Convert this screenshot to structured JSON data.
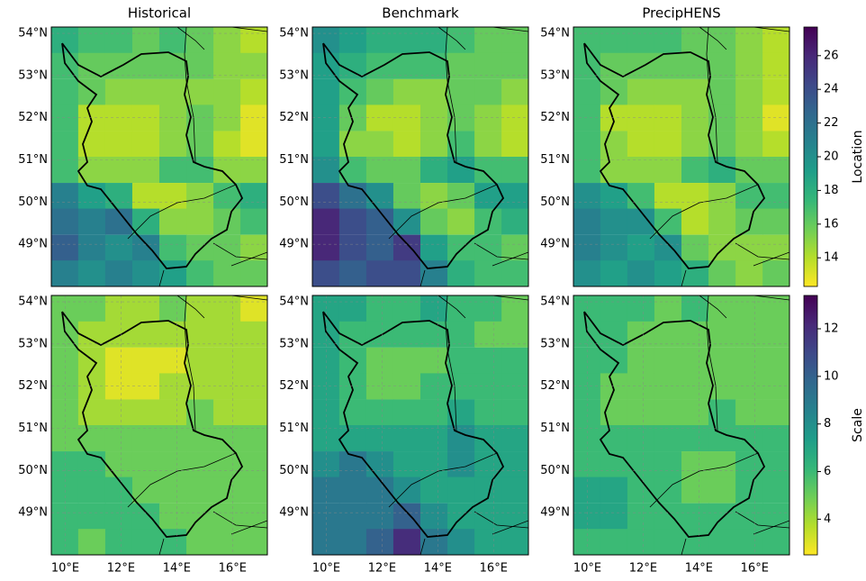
{
  "chart_data": [
    {
      "type": "heatmap",
      "title": "Historical",
      "colormap": "viridis_r",
      "clim": [
        12.3,
        27.7
      ],
      "grid": true,
      "xlim": [
        9.5,
        17.25
      ],
      "ylim": [
        48.0,
        54.15
      ],
      "yticks": [
        {
          "value": 49,
          "label": "49°N"
        },
        {
          "value": 50,
          "label": "50°N"
        },
        {
          "value": 51,
          "label": "51°N"
        },
        {
          "value": 52,
          "label": "52°N"
        },
        {
          "value": 53,
          "label": "53°N"
        },
        {
          "value": 54,
          "label": "54°N"
        }
      ],
      "x": [
        9.98,
        10.95,
        11.92,
        12.89,
        13.86,
        14.83,
        15.8,
        16.77
      ],
      "y": [
        53.84,
        53.23,
        52.61,
        52.0,
        51.38,
        50.77,
        50.15,
        49.54,
        48.92,
        48.31
      ],
      "z": [
        [
          18,
          17,
          17,
          16,
          17,
          16,
          15,
          14
        ],
        [
          17,
          16,
          16,
          16,
          16,
          16,
          15,
          15
        ],
        [
          17,
          16,
          15,
          15,
          15,
          15,
          15,
          14
        ],
        [
          17,
          14,
          14,
          14,
          15,
          16,
          15,
          13
        ],
        [
          17,
          14,
          14,
          14,
          15,
          16,
          14,
          13
        ],
        [
          17,
          15,
          15,
          15,
          17,
          17,
          15,
          15
        ],
        [
          21,
          19,
          18,
          14,
          14,
          15,
          17,
          18
        ],
        [
          22,
          21,
          22,
          18,
          15,
          15,
          16,
          17
        ],
        [
          23,
          21,
          20,
          21,
          17,
          16,
          16,
          15
        ],
        [
          21,
          20,
          21,
          20,
          19,
          17,
          16,
          16
        ]
      ]
    },
    {
      "type": "heatmap",
      "title": "Benchmark",
      "colormap": "viridis_r",
      "clim": [
        12.3,
        27.7
      ],
      "grid": true,
      "xlim": [
        9.5,
        17.25
      ],
      "ylim": [
        48.0,
        54.15
      ],
      "yticks": [
        {
          "value": 49,
          "label": "49°N"
        },
        {
          "value": 50,
          "label": "50°N"
        },
        {
          "value": 51,
          "label": "51°N"
        },
        {
          "value": 52,
          "label": "52°N"
        },
        {
          "value": 53,
          "label": "53°N"
        },
        {
          "value": 54,
          "label": "54°N"
        }
      ],
      "x": [
        9.98,
        10.95,
        11.92,
        12.89,
        13.86,
        14.83,
        15.8,
        16.77
      ],
      "y": [
        53.84,
        53.23,
        52.61,
        52.0,
        51.38,
        50.77,
        50.15,
        49.54,
        48.92,
        48.31
      ],
      "z": [
        [
          20,
          19,
          18,
          18,
          18,
          17,
          16,
          16
        ],
        [
          19,
          18,
          17,
          17,
          17,
          16,
          16,
          16
        ],
        [
          19,
          17,
          16,
          15,
          15,
          16,
          16,
          15
        ],
        [
          19,
          16,
          14,
          14,
          15,
          16,
          15,
          14
        ],
        [
          19,
          15,
          15,
          14,
          15,
          17,
          15,
          14
        ],
        [
          20,
          17,
          16,
          16,
          18,
          19,
          17,
          17
        ],
        [
          24,
          22,
          20,
          16,
          15,
          16,
          19,
          19
        ],
        [
          26,
          24,
          23,
          20,
          16,
          15,
          17,
          18
        ],
        [
          26,
          24,
          23,
          25,
          19,
          17,
          17,
          16
        ],
        [
          24,
          23,
          24,
          24,
          21,
          18,
          17,
          17
        ]
      ]
    },
    {
      "type": "heatmap",
      "title": "PrecipHENS",
      "colormap": "viridis_r",
      "clim": [
        12.3,
        27.7
      ],
      "grid": true,
      "xlim": [
        9.5,
        17.25
      ],
      "ylim": [
        48.0,
        54.15
      ],
      "yticks": [
        {
          "value": 49,
          "label": "49°N"
        },
        {
          "value": 50,
          "label": "50°N"
        },
        {
          "value": 51,
          "label": "51°N"
        },
        {
          "value": 52,
          "label": "52°N"
        },
        {
          "value": 53,
          "label": "53°N"
        },
        {
          "value": 54,
          "label": "54°N"
        }
      ],
      "x": [
        9.98,
        10.95,
        11.92,
        12.89,
        13.86,
        14.83,
        15.8,
        16.77
      ],
      "y": [
        53.84,
        53.23,
        52.61,
        52.0,
        51.38,
        50.77,
        50.15,
        49.54,
        48.92,
        48.31
      ],
      "z": [
        [
          17,
          17,
          17,
          17,
          16,
          16,
          15,
          14
        ],
        [
          17,
          16,
          16,
          16,
          16,
          16,
          15,
          14
        ],
        [
          17,
          16,
          15,
          15,
          15,
          16,
          15,
          14
        ],
        [
          17,
          14,
          14,
          14,
          15,
          16,
          15,
          13
        ],
        [
          17,
          15,
          14,
          14,
          15,
          16,
          15,
          14
        ],
        [
          17,
          15,
          15,
          15,
          17,
          18,
          16,
          16
        ],
        [
          20,
          19,
          17,
          14,
          14,
          15,
          17,
          17
        ],
        [
          21,
          20,
          20,
          17,
          14,
          15,
          16,
          16
        ],
        [
          21,
          20,
          19,
          20,
          16,
          15,
          15,
          15
        ],
        [
          20,
          19,
          20,
          19,
          18,
          16,
          15,
          16
        ]
      ],
      "colorbar": {
        "label": "Location",
        "lim": [
          12.3,
          27.7
        ],
        "ticks": [
          14,
          16,
          18,
          20,
          22,
          24,
          26
        ]
      }
    },
    {
      "type": "heatmap",
      "colormap": "viridis_r",
      "clim": [
        2.5,
        13.4
      ],
      "grid": true,
      "xlim": [
        9.5,
        17.25
      ],
      "ylim": [
        48.0,
        54.15
      ],
      "xticks": [
        {
          "value": 10,
          "label": "10°E"
        },
        {
          "value": 12,
          "label": "12°E"
        },
        {
          "value": 14,
          "label": "14°E"
        },
        {
          "value": 16,
          "label": "16°E"
        }
      ],
      "yticks": [
        {
          "value": 49,
          "label": "49°N"
        },
        {
          "value": 50,
          "label": "50°N"
        },
        {
          "value": 51,
          "label": "51°N"
        },
        {
          "value": 52,
          "label": "52°N"
        },
        {
          "value": 53,
          "label": "53°N"
        },
        {
          "value": 54,
          "label": "54°N"
        }
      ],
      "x": [
        9.98,
        10.95,
        11.92,
        12.89,
        13.86,
        14.83,
        15.8,
        16.77
      ],
      "y": [
        53.84,
        53.23,
        52.61,
        52.0,
        51.38,
        50.77,
        50.15,
        49.54,
        48.92,
        48.31
      ],
      "z": [
        [
          5,
          5,
          4,
          4,
          5,
          4,
          4,
          3
        ],
        [
          5,
          4,
          4,
          4,
          4,
          4,
          4,
          4
        ],
        [
          5,
          4,
          3,
          3,
          3,
          4,
          4,
          4
        ],
        [
          5,
          4,
          3,
          3,
          4,
          4,
          4,
          4
        ],
        [
          5,
          4,
          4,
          4,
          4,
          5,
          4,
          4
        ],
        [
          5,
          5,
          5,
          5,
          5,
          5,
          5,
          5
        ],
        [
          6,
          6,
          5,
          5,
          5,
          5,
          5,
          5
        ],
        [
          6,
          6,
          6,
          5,
          5,
          5,
          5,
          5
        ],
        [
          6,
          6,
          6,
          6,
          5,
          5,
          5,
          5
        ],
        [
          6,
          5,
          6,
          6,
          6,
          5,
          5,
          5
        ]
      ]
    },
    {
      "type": "heatmap",
      "colormap": "viridis_r",
      "clim": [
        2.5,
        13.4
      ],
      "grid": true,
      "xlim": [
        9.5,
        17.25
      ],
      "ylim": [
        48.0,
        54.15
      ],
      "xticks": [
        {
          "value": 10,
          "label": "10°E"
        },
        {
          "value": 12,
          "label": "12°E"
        },
        {
          "value": 14,
          "label": "14°E"
        },
        {
          "value": 16,
          "label": "16°E"
        }
      ],
      "yticks": [
        {
          "value": 49,
          "label": "49°N"
        },
        {
          "value": 50,
          "label": "50°N"
        },
        {
          "value": 51,
          "label": "51°N"
        },
        {
          "value": 52,
          "label": "52°N"
        },
        {
          "value": 53,
          "label": "53°N"
        },
        {
          "value": 54,
          "label": "54°N"
        }
      ],
      "x": [
        9.98,
        10.95,
        11.92,
        12.89,
        13.86,
        14.83,
        15.8,
        16.77
      ],
      "y": [
        53.84,
        53.23,
        52.61,
        52.0,
        51.38,
        50.77,
        50.15,
        49.54,
        48.92,
        48.31
      ],
      "z": [
        [
          7,
          7,
          6,
          6,
          7,
          6,
          6,
          5
        ],
        [
          7,
          6,
          6,
          6,
          6,
          6,
          5,
          5
        ],
        [
          7,
          6,
          5,
          5,
          5,
          6,
          6,
          6
        ],
        [
          7,
          6,
          5,
          5,
          6,
          6,
          6,
          6
        ],
        [
          7,
          6,
          6,
          6,
          6,
          7,
          6,
          6
        ],
        [
          7,
          7,
          7,
          7,
          7,
          8,
          7,
          7
        ],
        [
          8,
          9,
          8,
          7,
          7,
          8,
          7,
          7
        ],
        [
          9,
          9,
          9,
          8,
          7,
          7,
          7,
          7
        ],
        [
          9,
          9,
          9,
          10,
          8,
          7,
          7,
          7
        ],
        [
          9,
          9,
          10,
          12,
          9,
          8,
          7,
          7
        ]
      ]
    },
    {
      "type": "heatmap",
      "colormap": "viridis_r",
      "clim": [
        2.5,
        13.4
      ],
      "grid": true,
      "xlim": [
        9.5,
        17.25
      ],
      "ylim": [
        48.0,
        54.15
      ],
      "xticks": [
        {
          "value": 10,
          "label": "10°E"
        },
        {
          "value": 12,
          "label": "12°E"
        },
        {
          "value": 14,
          "label": "14°E"
        },
        {
          "value": 16,
          "label": "16°E"
        }
      ],
      "yticks": [
        {
          "value": 49,
          "label": "49°N"
        },
        {
          "value": 50,
          "label": "50°N"
        },
        {
          "value": 51,
          "label": "51°N"
        },
        {
          "value": 52,
          "label": "52°N"
        },
        {
          "value": 53,
          "label": "53°N"
        },
        {
          "value": 54,
          "label": "54°N"
        }
      ],
      "x": [
        9.98,
        10.95,
        11.92,
        12.89,
        13.86,
        14.83,
        15.8,
        16.77
      ],
      "y": [
        53.84,
        53.23,
        52.61,
        52.0,
        51.38,
        50.77,
        50.15,
        49.54,
        48.92,
        48.31
      ],
      "z": [
        [
          6,
          6,
          6,
          5,
          6,
          5,
          5,
          5
        ],
        [
          6,
          6,
          5,
          5,
          5,
          5,
          5,
          5
        ],
        [
          6,
          6,
          5,
          5,
          5,
          5,
          5,
          5
        ],
        [
          6,
          5,
          5,
          5,
          5,
          5,
          5,
          5
        ],
        [
          6,
          5,
          5,
          5,
          5,
          6,
          5,
          5
        ],
        [
          6,
          6,
          6,
          6,
          6,
          6,
          6,
          6
        ],
        [
          6,
          6,
          6,
          6,
          5,
          5,
          6,
          6
        ],
        [
          7,
          7,
          6,
          6,
          5,
          5,
          6,
          6
        ],
        [
          7,
          7,
          6,
          6,
          6,
          6,
          6,
          6
        ],
        [
          6,
          6,
          6,
          6,
          6,
          6,
          6,
          6
        ]
      ],
      "colorbar": {
        "label": "Scale",
        "lim": [
          2.5,
          13.4
        ],
        "ticks": [
          4,
          6,
          8,
          10,
          12
        ]
      }
    }
  ]
}
